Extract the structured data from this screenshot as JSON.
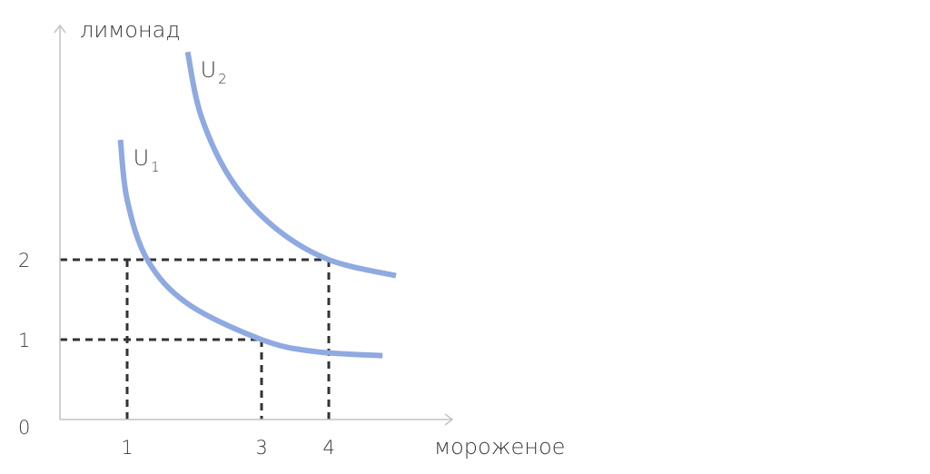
{
  "chart_data": {
    "type": "line",
    "title": "",
    "xlabel": "мороженое",
    "ylabel": "лимонад",
    "origin_label": "0",
    "xlim": [
      0,
      5.75
    ],
    "ylim": [
      0,
      4.8
    ],
    "x_ticks": [
      {
        "value": 1,
        "label": "1"
      },
      {
        "value": 3,
        "label": "3"
      },
      {
        "value": 4,
        "label": "4"
      }
    ],
    "y_ticks": [
      {
        "value": 1,
        "label": "1"
      },
      {
        "value": 2,
        "label": "2"
      }
    ],
    "series": [
      {
        "name": "U",
        "subscript": "1",
        "points": [
          [
            0.9,
            3.5
          ],
          [
            1.0,
            2.75
          ],
          [
            1.3,
            2.0
          ],
          [
            1.9,
            1.45
          ],
          [
            3.0,
            1.0
          ],
          [
            3.8,
            0.85
          ],
          [
            4.8,
            0.8
          ]
        ]
      },
      {
        "name": "U",
        "subscript": "2",
        "points": [
          [
            1.9,
            4.6
          ],
          [
            2.1,
            3.8
          ],
          [
            2.55,
            3.0
          ],
          [
            3.2,
            2.4
          ],
          [
            4.0,
            2.0
          ],
          [
            5.0,
            1.8
          ]
        ]
      }
    ],
    "guides": [
      {
        "x": 1,
        "y": 2
      },
      {
        "x": 4,
        "y": 2
      },
      {
        "x": 3,
        "y": 1
      }
    ],
    "colors": {
      "curve": "#8fa9e1",
      "guide": "#333333",
      "axis": "#c4c4c4"
    },
    "grid": false,
    "legend": "none"
  }
}
